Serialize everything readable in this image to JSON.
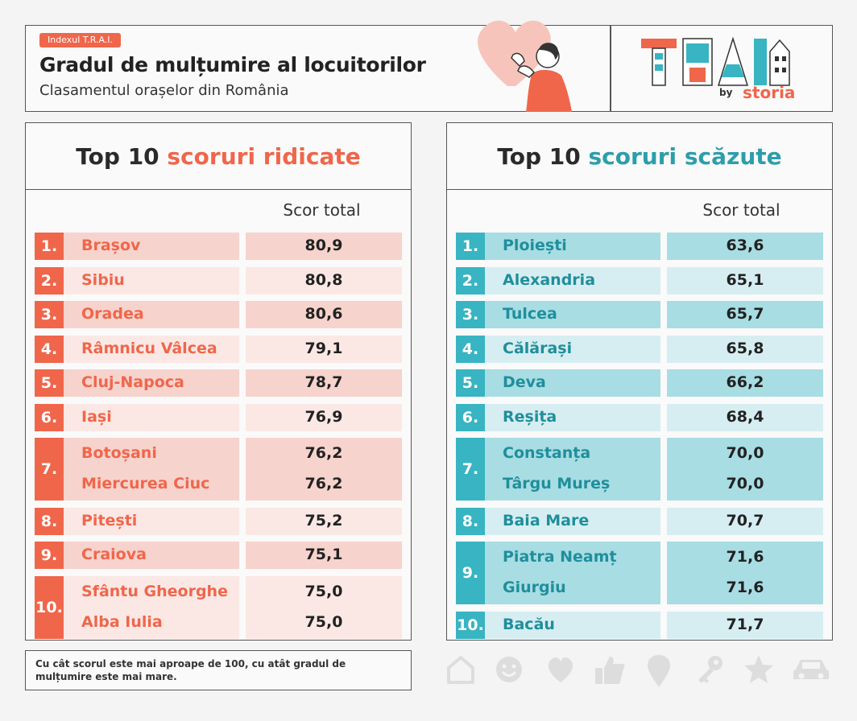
{
  "header": {
    "badge": "Indexul T.R.A.I.",
    "title": "Gradul de mulțumire al locuitorilor",
    "subtitle": "Clasamentul orașelor din România"
  },
  "logo": {
    "by": "by",
    "brand": "storia",
    "brand_color": "#f0664b"
  },
  "left": {
    "title_plain": "Top 10 ",
    "title_accent": "scoruri ridicate",
    "score_header": "Scor total",
    "accent_color": "#f0664b",
    "rows": [
      {
        "rank": "1.",
        "names": [
          "Brașov"
        ],
        "scores": [
          "80,9"
        ]
      },
      {
        "rank": "2.",
        "names": [
          "Sibiu"
        ],
        "scores": [
          "80,8"
        ]
      },
      {
        "rank": "3.",
        "names": [
          "Oradea"
        ],
        "scores": [
          "80,6"
        ]
      },
      {
        "rank": "4.",
        "names": [
          "Râmnicu Vâlcea"
        ],
        "scores": [
          "79,1"
        ]
      },
      {
        "rank": "5.",
        "names": [
          "Cluj-Napoca"
        ],
        "scores": [
          "78,7"
        ]
      },
      {
        "rank": "6.",
        "names": [
          "Iași"
        ],
        "scores": [
          "76,9"
        ]
      },
      {
        "rank": "7.",
        "names": [
          "Botoșani",
          "Miercurea Ciuc"
        ],
        "scores": [
          "76,2",
          "76,2"
        ]
      },
      {
        "rank": "8.",
        "names": [
          "Pitești"
        ],
        "scores": [
          "75,2"
        ]
      },
      {
        "rank": "9.",
        "names": [
          "Craiova"
        ],
        "scores": [
          "75,1"
        ]
      },
      {
        "rank": "10.",
        "names": [
          "Sfântu Gheorghe",
          "Alba Iulia"
        ],
        "scores": [
          "75,0",
          "75,0"
        ]
      }
    ]
  },
  "right": {
    "title_plain": "Top 10 ",
    "title_accent": "scoruri scăzute",
    "score_header": "Scor total",
    "accent_color": "#2c9eab",
    "rows": [
      {
        "rank": "1.",
        "names": [
          "Ploiești"
        ],
        "scores": [
          "63,6"
        ]
      },
      {
        "rank": "2.",
        "names": [
          "Alexandria"
        ],
        "scores": [
          "65,1"
        ]
      },
      {
        "rank": "3.",
        "names": [
          "Tulcea"
        ],
        "scores": [
          "65,7"
        ]
      },
      {
        "rank": "4.",
        "names": [
          "Călărași"
        ],
        "scores": [
          "65,8"
        ]
      },
      {
        "rank": "5.",
        "names": [
          "Deva"
        ],
        "scores": [
          "66,2"
        ]
      },
      {
        "rank": "6.",
        "names": [
          "Reșița"
        ],
        "scores": [
          "68,4"
        ]
      },
      {
        "rank": "7.",
        "names": [
          "Constanța",
          "Târgu Mureș"
        ],
        "scores": [
          "70,0",
          "70,0"
        ]
      },
      {
        "rank": "8.",
        "names": [
          "Baia Mare"
        ],
        "scores": [
          "70,7"
        ]
      },
      {
        "rank": "9.",
        "names": [
          "Piatra Neamț",
          "Giurgiu"
        ],
        "scores": [
          "71,6",
          "71,6"
        ]
      },
      {
        "rank": "10.",
        "names": [
          "Bacău"
        ],
        "scores": [
          "71,7"
        ]
      }
    ]
  },
  "footnote": "Cu cât scorul este mai aproape de 100, cu atât gradul de mulțumire este mai mare.",
  "icons": [
    "home-icon",
    "smiley-icon",
    "heart-icon",
    "thumbs-up-icon",
    "map-pin-icon",
    "key-icon",
    "star-icon",
    "car-icon"
  ]
}
